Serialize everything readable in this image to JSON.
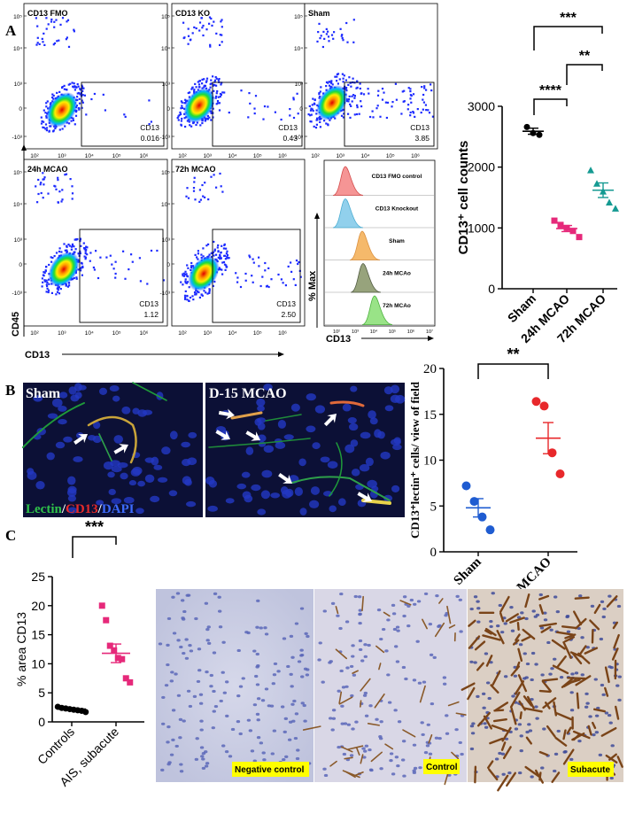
{
  "panel_labels": [
    "A",
    "B",
    "C"
  ],
  "panelA": {
    "flow_plots": [
      {
        "title": "CD13 FMO",
        "gate_label": "CD13",
        "gate_value": "0.016"
      },
      {
        "title": "CD13 KO",
        "gate_label": "CD13",
        "gate_value": "0.43"
      },
      {
        "title": "Sham",
        "gate_label": "CD13",
        "gate_value": "3.85"
      },
      {
        "title": "24h MCAO",
        "gate_label": "CD13",
        "gate_value": "1.12"
      },
      {
        "title": "72h MCAO",
        "gate_label": "CD13",
        "gate_value": "2.50"
      }
    ],
    "y_ticks": [
      "10⁵",
      "10⁴",
      "10³",
      "0",
      "-10³"
    ],
    "x_ticks": [
      "10²",
      "10³",
      "10⁴",
      "10⁵",
      "10⁶"
    ],
    "flow_ylabel": "CD45",
    "flow_xlabel": "CD13",
    "histogram": {
      "rows": [
        "CD13 FMO control",
        "CD13 Knockout",
        "Sham",
        "24h MCAo",
        "72h MCAo"
      ],
      "ylabel": "% Max",
      "xlabel": "CD13",
      "x_ticks": [
        "10²",
        "10³",
        "10⁴",
        "10⁵",
        "10⁶",
        "10⁷"
      ]
    },
    "sig": [
      "***",
      "**",
      "****"
    ]
  },
  "panelB": {
    "images": [
      {
        "label": "Sham"
      },
      {
        "label": "D-15 MCAO"
      }
    ],
    "stain_legend": {
      "lectin": "Lectin",
      "sep1": "/",
      "cd13": "CD13",
      "sep2": "/",
      "dapi": "DAPI"
    },
    "sig": [
      "**"
    ]
  },
  "panelC": {
    "ihc_labels": [
      "Negative control",
      "Control",
      "Subacute"
    ],
    "sig": [
      "***"
    ]
  },
  "chart_data": [
    {
      "type": "scatter",
      "ylabel": "CD13⁺ cell counts",
      "categories": [
        "Sham",
        "24h MCAO",
        "72h MCAO"
      ],
      "ylim": [
        0,
        3000
      ],
      "yticks": [
        0,
        1000,
        2000,
        3000
      ],
      "colors": [
        "#000000",
        "#e6297a",
        "#159a92"
      ],
      "points": [
        [
          2660,
          2560,
          2530
        ],
        [
          1120,
          1050,
          1000,
          950,
          850
        ],
        [
          1950,
          1730,
          1600,
          1420,
          1320
        ]
      ],
      "means": [
        2590,
        990,
        1620
      ],
      "sem": [
        50,
        50,
        120
      ]
    },
    {
      "type": "scatter",
      "ylabel": "CD13⁺lectin⁺ cells/ view of field",
      "categories": [
        "Sham",
        "MCAO"
      ],
      "ylim": [
        0,
        20
      ],
      "yticks": [
        0,
        5,
        10,
        15,
        20
      ],
      "colors": [
        "#1f5cd1",
        "#e8282b"
      ],
      "points": [
        [
          7.2,
          5.5,
          3.8,
          2.4
        ],
        [
          16.4,
          15.9,
          10.8,
          8.5
        ]
      ],
      "means": [
        4.8,
        12.4
      ],
      "sem": [
        1.0,
        1.7
      ]
    },
    {
      "type": "scatter",
      "ylabel": "% area CD13",
      "categories": [
        "Controls",
        "AIS, subacute"
      ],
      "ylim": [
        0,
        25
      ],
      "yticks": [
        0,
        5,
        10,
        15,
        20,
        25
      ],
      "colors": [
        "#000000",
        "#e6297a"
      ],
      "points": [
        [
          2.6,
          2.4,
          2.3,
          2.2,
          2.1,
          2.0,
          1.9,
          1.7
        ],
        [
          20.0,
          17.5,
          13.1,
          12.3,
          11.0,
          10.8,
          7.5,
          6.8
        ]
      ],
      "means": [
        2.2,
        11.8
      ],
      "sem": [
        0.15,
        1.6
      ]
    }
  ]
}
